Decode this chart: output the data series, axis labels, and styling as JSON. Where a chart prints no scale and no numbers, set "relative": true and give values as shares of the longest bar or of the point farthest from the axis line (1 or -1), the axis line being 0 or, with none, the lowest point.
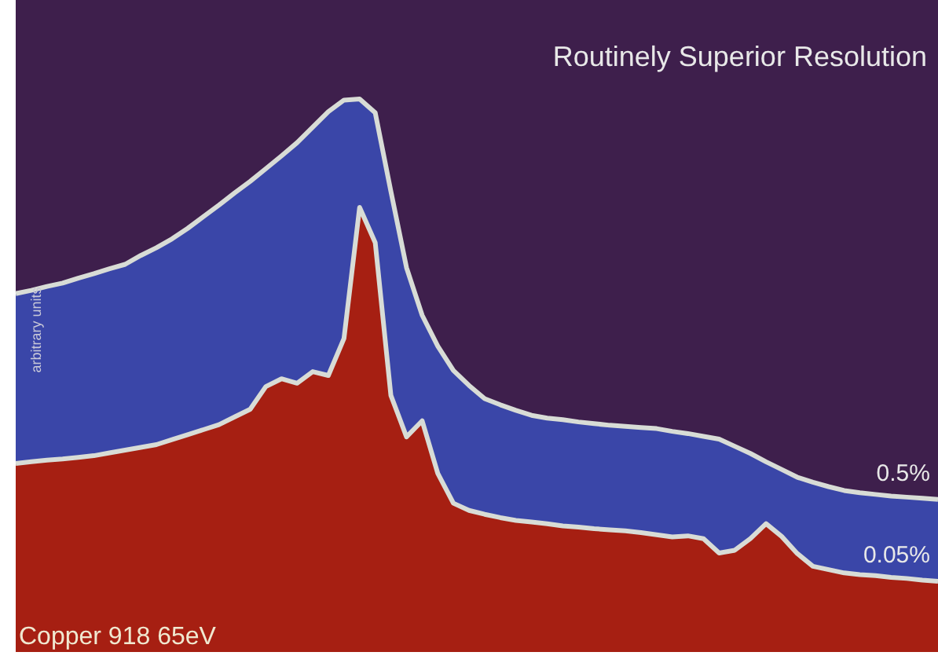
{
  "chart_data": {
    "type": "area",
    "title": "Routinely Superior Resolution",
    "ylabel": "arbitrary units",
    "relative": true,
    "annotations": [
      "Copper 918 65eV"
    ],
    "categories": [
      null,
      null,
      null,
      null,
      null,
      null,
      null,
      null,
      null,
      null,
      null,
      null,
      null,
      null,
      null,
      null,
      null,
      null,
      null,
      null,
      null,
      null,
      null,
      null,
      null,
      null,
      null,
      null,
      null,
      null,
      null,
      null,
      null,
      null,
      null,
      null,
      null,
      null,
      null,
      null,
      null,
      null,
      null,
      null,
      null,
      null,
      null,
      null,
      null,
      null,
      null,
      null,
      null,
      null,
      null,
      null,
      null,
      null,
      null,
      null
    ],
    "series": [
      {
        "name": "0.5%",
        "color": "#3a46a8",
        "values": [
          0.648,
          0.654,
          0.661,
          0.667,
          0.676,
          0.684,
          0.693,
          0.701,
          0.717,
          0.731,
          0.747,
          0.766,
          0.787,
          0.808,
          0.83,
          0.851,
          0.874,
          0.897,
          0.921,
          0.949,
          0.977,
          0.998,
          1.0,
          0.975,
          0.833,
          0.695,
          0.609,
          0.553,
          0.509,
          0.482,
          0.458,
          0.447,
          0.437,
          0.428,
          0.423,
          0.42,
          0.416,
          0.413,
          0.41,
          0.408,
          0.406,
          0.404,
          0.399,
          0.395,
          0.39,
          0.385,
          0.372,
          0.359,
          0.344,
          0.33,
          0.316,
          0.307,
          0.299,
          0.292,
          0.288,
          0.285,
          0.282,
          0.28,
          0.278,
          0.276
        ]
      },
      {
        "name": "0.05%",
        "color": "#a61f12",
        "values": [
          0.341,
          0.344,
          0.347,
          0.349,
          0.352,
          0.355,
          0.36,
          0.365,
          0.37,
          0.375,
          0.384,
          0.393,
          0.402,
          0.411,
          0.425,
          0.439,
          0.48,
          0.494,
          0.486,
          0.507,
          0.5,
          0.567,
          0.804,
          0.74,
          0.464,
          0.389,
          0.418,
          0.323,
          0.269,
          0.256,
          0.249,
          0.243,
          0.238,
          0.235,
          0.232,
          0.228,
          0.226,
          0.223,
          0.221,
          0.219,
          0.216,
          0.212,
          0.208,
          0.21,
          0.205,
          0.179,
          0.184,
          0.205,
          0.232,
          0.209,
          0.178,
          0.155,
          0.149,
          0.143,
          0.14,
          0.138,
          0.135,
          0.133,
          0.13,
          0.128
        ]
      }
    ]
  }
}
